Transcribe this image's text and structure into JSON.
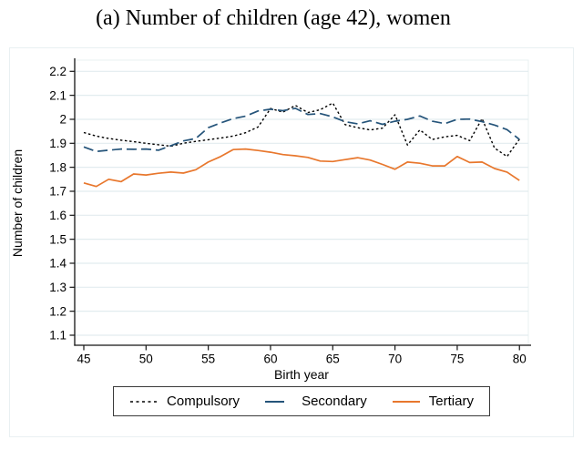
{
  "title": "(a) Number of children (age 42), women",
  "chart_data": {
    "type": "line",
    "title": "(a) Number of children (age 42), women",
    "xlabel": "Birth year",
    "ylabel": "Number of children",
    "x_range_note": "birth years 45 through 80, one point per year",
    "x": [
      45,
      46,
      47,
      48,
      49,
      50,
      51,
      52,
      53,
      54,
      55,
      56,
      57,
      58,
      59,
      60,
      61,
      62,
      63,
      64,
      65,
      66,
      67,
      68,
      69,
      70,
      71,
      72,
      73,
      74,
      75,
      76,
      77,
      78,
      79,
      80
    ],
    "xticks": [
      45,
      50,
      55,
      60,
      65,
      70,
      75,
      80
    ],
    "yticks": [
      1.1,
      1.2,
      1.3,
      1.4,
      1.5,
      1.6,
      1.7,
      1.8,
      1.9,
      2.0,
      2.1,
      2.2
    ],
    "ytick_labels": [
      "1.1",
      "1.2",
      "1.3",
      "1.4",
      "1.5",
      "1.6",
      "1.7",
      "1.8",
      "1.9",
      "2",
      "2.1",
      "2.2"
    ],
    "ylim": [
      1.06,
      2.25
    ],
    "xlim": [
      44.3,
      80.7
    ],
    "grid": "horizontal",
    "legend_position": "bottom-center",
    "series": [
      {
        "name": "Compulsory",
        "color": "#000000",
        "dash": "dotted",
        "values": [
          1.945,
          1.93,
          1.92,
          1.913,
          1.907,
          1.9,
          1.894,
          1.888,
          1.9,
          1.908,
          1.915,
          1.922,
          1.93,
          1.944,
          1.968,
          2.045,
          2.03,
          2.058,
          2.028,
          2.04,
          2.068,
          1.978,
          1.965,
          1.956,
          1.963,
          2.019,
          1.893,
          1.956,
          1.916,
          1.927,
          1.933,
          1.911,
          2.003,
          1.88,
          1.845,
          1.917
        ]
      },
      {
        "name": "Secondary",
        "color": "#25547a",
        "dash": "dashed",
        "values": [
          1.885,
          1.866,
          1.871,
          1.876,
          1.875,
          1.876,
          1.871,
          1.89,
          1.91,
          1.92,
          1.965,
          1.985,
          2.003,
          2.013,
          2.035,
          2.042,
          2.036,
          2.046,
          2.02,
          2.024,
          2.01,
          1.99,
          1.981,
          1.994,
          1.979,
          1.992,
          2.0,
          2.014,
          1.992,
          1.982,
          2.0,
          2.001,
          1.99,
          1.976,
          1.957,
          1.916
        ]
      },
      {
        "name": "Tertiary",
        "color": "#e8772d",
        "dash": "solid",
        "values": [
          1.735,
          1.72,
          1.75,
          1.74,
          1.772,
          1.768,
          1.775,
          1.78,
          1.776,
          1.79,
          1.822,
          1.845,
          1.874,
          1.876,
          1.87,
          1.863,
          1.853,
          1.848,
          1.841,
          1.826,
          1.824,
          1.832,
          1.84,
          1.83,
          1.812,
          1.792,
          1.822,
          1.817,
          1.806,
          1.806,
          1.845,
          1.82,
          1.822,
          1.795,
          1.78,
          1.745
        ]
      }
    ],
    "colors": {
      "axis": "#141414",
      "gridline": "#e2ecef",
      "plot_border": "#e9f0f2",
      "text": "#000000"
    }
  }
}
